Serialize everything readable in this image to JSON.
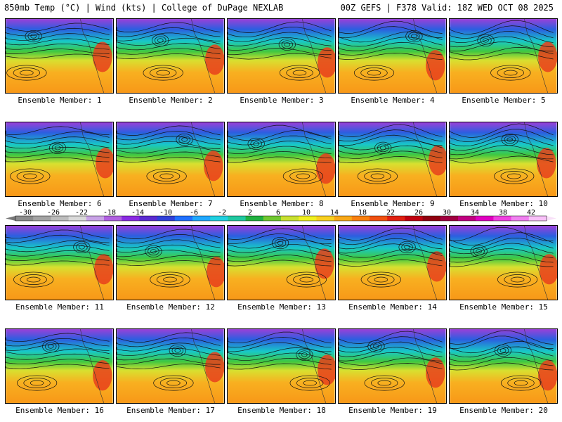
{
  "header": {
    "left": "850mb Temp (°C) | Wind (kts) | College of DuPage NEXLAB",
    "right": "00Z GEFS | F378 Valid: 18Z WED OCT 08 2025"
  },
  "members": [
    "Ensemble Member: 1",
    "Ensemble Member: 2",
    "Ensemble Member: 3",
    "Ensemble Member: 4",
    "Ensemble Member: 5",
    "Ensemble Member: 6",
    "Ensemble Member: 7",
    "Ensemble Member: 8",
    "Ensemble Member: 9",
    "Ensemble Member: 10",
    "Ensemble Member: 11",
    "Ensemble Member: 12",
    "Ensemble Member: 13",
    "Ensemble Member: 14",
    "Ensemble Member: 15",
    "Ensemble Member: 16",
    "Ensemble Member: 17",
    "Ensemble Member: 18",
    "Ensemble Member: 19",
    "Ensemble Member: 20"
  ],
  "colorbar": {
    "labels": [
      "-30",
      "-26",
      "-22",
      "-18",
      "-14",
      "-10",
      "-6",
      "-2",
      "2",
      "6",
      "10",
      "14",
      "18",
      "22",
      "26",
      "30",
      "34",
      "38",
      "42"
    ],
    "colors": [
      "#8c8c8c",
      "#a3a3a3",
      "#bdbdbd",
      "#d9d9d9",
      "#c8a2e6",
      "#b060e0",
      "#8a2be2",
      "#5a2bd0",
      "#3040d8",
      "#2070ff",
      "#20a8ff",
      "#20d0e0",
      "#20c8a0",
      "#20b040",
      "#70c830",
      "#c8e030",
      "#f0f020",
      "#f8d020",
      "#f8a818",
      "#f88010",
      "#f05010",
      "#e02010",
      "#c00010",
      "#900010",
      "#a00040",
      "#c00080",
      "#e000c0",
      "#f040e0",
      "#f080f0",
      "#f8c0f8"
    ]
  }
}
